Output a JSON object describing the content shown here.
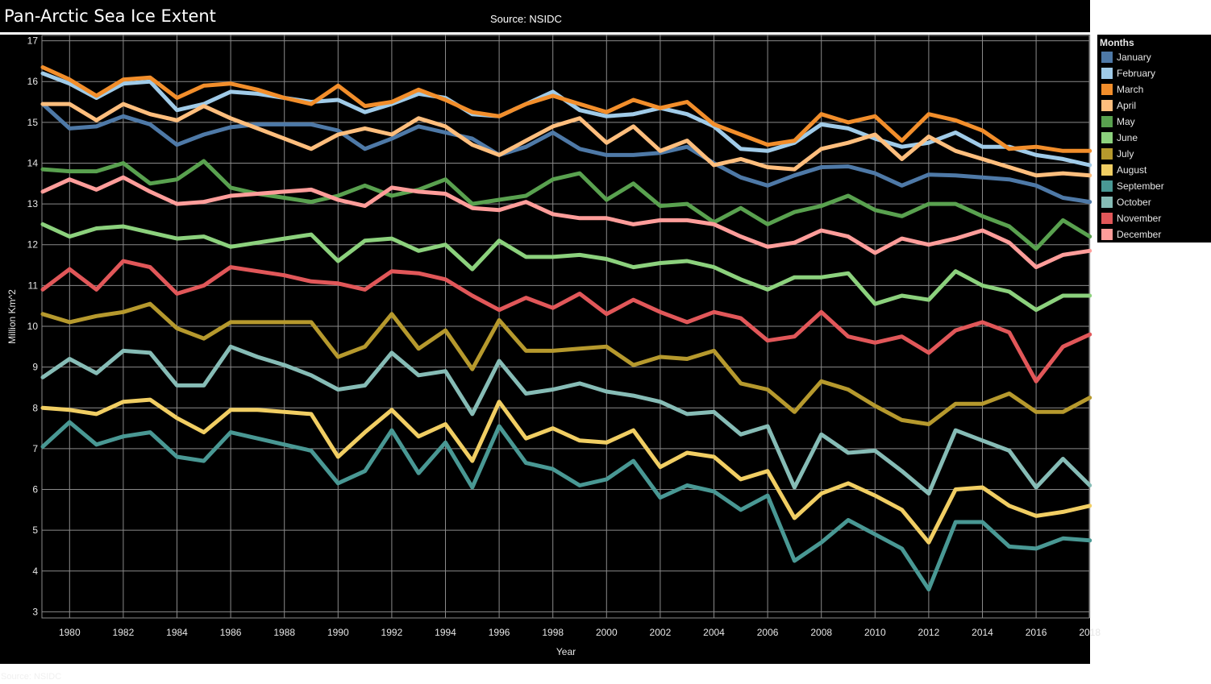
{
  "header": {
    "title": "Pan-Arctic Sea Ice Extent",
    "subtitle": "Source: NSIDC"
  },
  "footer": {
    "source": "Source: NSIDC"
  },
  "legend": {
    "title": "Months"
  },
  "chart_data": {
    "type": "line",
    "title": "Pan-Arctic Sea Ice Extent",
    "subtitle": "Source: NSIDC",
    "xlabel": "Year",
    "ylabel": "Million Km^2",
    "xlim": [
      1979,
      2018
    ],
    "ylim": [
      3,
      17
    ],
    "xticks": [
      1980,
      1982,
      1984,
      1986,
      1988,
      1990,
      1992,
      1994,
      1996,
      1998,
      2000,
      2002,
      2004,
      2006,
      2008,
      2010,
      2012,
      2014,
      2016,
      2018
    ],
    "yticks": [
      3,
      4,
      5,
      6,
      7,
      8,
      9,
      10,
      11,
      12,
      13,
      14,
      15,
      16,
      17
    ],
    "grid": true,
    "legend_position": "right",
    "x": [
      1979,
      1980,
      1981,
      1982,
      1983,
      1984,
      1985,
      1986,
      1987,
      1988,
      1989,
      1990,
      1991,
      1992,
      1993,
      1994,
      1995,
      1996,
      1997,
      1998,
      1999,
      2000,
      2001,
      2002,
      2003,
      2004,
      2005,
      2006,
      2007,
      2008,
      2009,
      2010,
      2011,
      2012,
      2013,
      2014,
      2015,
      2016,
      2017,
      2018
    ],
    "series": [
      {
        "name": "January",
        "color": "#4e79a7",
        "values": [
          15.45,
          14.85,
          14.9,
          15.15,
          14.95,
          14.45,
          14.7,
          14.88,
          14.95,
          14.95,
          14.95,
          14.8,
          14.35,
          14.6,
          14.9,
          14.75,
          14.6,
          14.2,
          14.4,
          14.75,
          14.35,
          14.2,
          14.2,
          14.25,
          14.4,
          14.0,
          13.65,
          13.45,
          13.7,
          13.9,
          13.92,
          13.75,
          13.45,
          13.72,
          13.7,
          13.65,
          13.6,
          13.45,
          13.15,
          13.05
        ]
      },
      {
        "name": "February",
        "color": "#a0cbe8",
        "values": [
          16.2,
          15.95,
          15.6,
          15.95,
          16.0,
          15.3,
          15.45,
          15.75,
          15.7,
          15.6,
          15.5,
          15.55,
          15.25,
          15.45,
          15.7,
          15.6,
          15.2,
          15.15,
          15.45,
          15.75,
          15.3,
          15.15,
          15.2,
          15.35,
          15.2,
          14.9,
          14.35,
          14.3,
          14.5,
          14.95,
          14.85,
          14.6,
          14.4,
          14.5,
          14.75,
          14.4,
          14.4,
          14.2,
          14.1,
          13.95
        ]
      },
      {
        "name": "March",
        "color": "#f28e2b",
        "values": [
          16.35,
          16.05,
          15.65,
          16.05,
          16.1,
          15.6,
          15.9,
          15.95,
          15.8,
          15.6,
          15.45,
          15.9,
          15.4,
          15.5,
          15.8,
          15.55,
          15.25,
          15.15,
          15.45,
          15.65,
          15.45,
          15.25,
          15.55,
          15.35,
          15.5,
          14.95,
          14.7,
          14.45,
          14.55,
          15.2,
          15.0,
          15.15,
          14.55,
          15.2,
          15.05,
          14.8,
          14.35,
          14.4,
          14.3,
          14.3
        ]
      },
      {
        "name": "April",
        "color": "#ffbe7d",
        "values": [
          15.45,
          15.45,
          15.05,
          15.45,
          15.2,
          15.05,
          15.4,
          15.1,
          14.85,
          14.6,
          14.35,
          14.7,
          14.85,
          14.7,
          15.1,
          14.9,
          14.45,
          14.2,
          14.55,
          14.9,
          15.1,
          14.5,
          14.9,
          14.3,
          14.55,
          13.95,
          14.1,
          13.9,
          13.85,
          14.35,
          14.5,
          14.7,
          14.1,
          14.65,
          14.3,
          14.1,
          13.9,
          13.7,
          13.75,
          13.7
        ]
      },
      {
        "name": "May",
        "color": "#59a14f",
        "values": [
          13.85,
          13.8,
          13.8,
          14.0,
          13.5,
          13.6,
          14.05,
          13.4,
          13.25,
          13.15,
          13.05,
          13.2,
          13.45,
          13.2,
          13.35,
          13.6,
          13.0,
          13.1,
          13.2,
          13.6,
          13.75,
          13.1,
          13.5,
          12.95,
          13.0,
          12.55,
          12.9,
          12.5,
          12.8,
          12.95,
          13.2,
          12.85,
          12.7,
          13.0,
          13.0,
          12.7,
          12.45,
          11.9,
          12.6,
          12.2
        ]
      },
      {
        "name": "June",
        "color": "#8cd17d",
        "values": [
          12.5,
          12.2,
          12.4,
          12.45,
          12.3,
          12.15,
          12.2,
          11.95,
          12.05,
          12.15,
          12.25,
          11.6,
          12.1,
          12.15,
          11.85,
          12.0,
          11.4,
          12.1,
          11.7,
          11.7,
          11.75,
          11.65,
          11.45,
          11.55,
          11.6,
          11.45,
          11.15,
          10.9,
          11.2,
          11.2,
          11.3,
          10.55,
          10.75,
          10.65,
          11.35,
          11.0,
          10.85,
          10.4,
          10.75,
          10.75
        ]
      },
      {
        "name": "July",
        "color": "#b6992d",
        "values": [
          10.3,
          10.1,
          10.25,
          10.35,
          10.55,
          9.95,
          9.7,
          10.1,
          10.1,
          10.1,
          10.1,
          9.25,
          9.5,
          10.3,
          9.45,
          9.9,
          8.95,
          10.15,
          9.4,
          9.4,
          9.45,
          9.5,
          9.05,
          9.25,
          9.2,
          9.4,
          8.6,
          8.45,
          7.9,
          8.65,
          8.45,
          8.05,
          7.7,
          7.6,
          8.1,
          8.1,
          8.35,
          7.9,
          7.9,
          8.25
        ]
      },
      {
        "name": "August",
        "color": "#f1ce63",
        "values": [
          8.0,
          7.95,
          7.85,
          8.15,
          8.2,
          7.75,
          7.4,
          7.95,
          7.95,
          7.9,
          7.85,
          6.8,
          7.4,
          7.95,
          7.3,
          7.6,
          6.7,
          8.15,
          7.25,
          7.5,
          7.2,
          7.15,
          7.45,
          6.55,
          6.9,
          6.8,
          6.25,
          6.45,
          5.3,
          5.9,
          6.15,
          5.85,
          5.5,
          4.7,
          6.0,
          6.05,
          5.6,
          5.35,
          5.45,
          5.6
        ]
      },
      {
        "name": "September",
        "color": "#499894",
        "values": [
          7.05,
          7.65,
          7.1,
          7.3,
          7.4,
          6.8,
          6.7,
          7.4,
          7.25,
          7.1,
          6.95,
          6.15,
          6.45,
          7.45,
          6.4,
          7.15,
          6.05,
          7.55,
          6.65,
          6.5,
          6.1,
          6.25,
          6.7,
          5.8,
          6.1,
          5.95,
          5.5,
          5.85,
          4.25,
          4.7,
          5.25,
          4.9,
          4.55,
          3.55,
          5.2,
          5.2,
          4.6,
          4.55,
          4.8,
          4.75
        ]
      },
      {
        "name": "October",
        "color": "#86bcb6",
        "values": [
          8.75,
          9.2,
          8.85,
          9.4,
          9.35,
          8.55,
          8.55,
          9.5,
          9.25,
          9.05,
          8.8,
          8.45,
          8.55,
          9.35,
          8.8,
          8.9,
          7.85,
          9.15,
          8.35,
          8.45,
          8.6,
          8.4,
          8.3,
          8.15,
          7.85,
          7.9,
          7.35,
          7.55,
          6.05,
          7.35,
          6.9,
          6.95,
          6.45,
          5.9,
          7.45,
          7.2,
          6.95,
          6.05,
          6.75,
          6.1
        ]
      },
      {
        "name": "November",
        "color": "#e15759",
        "values": [
          10.9,
          11.4,
          10.9,
          11.6,
          11.45,
          10.8,
          11.0,
          11.45,
          11.35,
          11.25,
          11.1,
          11.05,
          10.9,
          11.35,
          11.3,
          11.15,
          10.75,
          10.4,
          10.7,
          10.45,
          10.8,
          10.3,
          10.65,
          10.35,
          10.1,
          10.35,
          10.2,
          9.65,
          9.75,
          10.35,
          9.75,
          9.6,
          9.75,
          9.35,
          9.9,
          10.1,
          9.85,
          8.65,
          9.5,
          9.8
        ]
      },
      {
        "name": "December",
        "color": "#ff9d9a",
        "values": [
          13.3,
          13.6,
          13.35,
          13.65,
          13.3,
          13.0,
          13.05,
          13.2,
          13.25,
          13.3,
          13.35,
          13.1,
          12.95,
          13.4,
          13.3,
          13.25,
          12.9,
          12.85,
          13.05,
          12.75,
          12.65,
          12.65,
          12.5,
          12.6,
          12.6,
          12.5,
          12.2,
          11.95,
          12.05,
          12.35,
          12.2,
          11.8,
          12.15,
          12.0,
          12.15,
          12.35,
          12.05,
          11.45,
          11.75,
          11.85
        ]
      }
    ]
  }
}
